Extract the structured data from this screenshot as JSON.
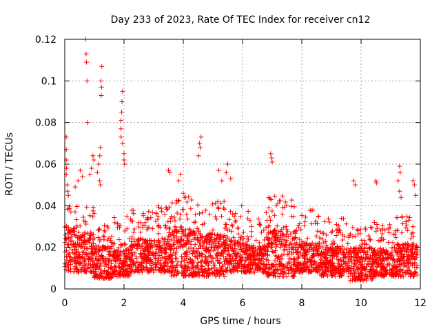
{
  "chart_data": {
    "type": "scatter",
    "title": "Day 233 of 2023, Rate Of TEC Index for receiver cn12",
    "xlabel": "GPS time / hours",
    "ylabel": "ROTI / TECUs",
    "xlim": [
      0,
      12
    ],
    "ylim": [
      0,
      0.12
    ],
    "xticks": [
      0,
      2,
      4,
      6,
      8,
      10,
      12
    ],
    "yticks": [
      0,
      0.02,
      0.04,
      0.06,
      0.08,
      0.1,
      0.12
    ],
    "xtick_labels": [
      "0",
      "2",
      "4",
      "6",
      "8",
      "10",
      "12"
    ],
    "ytick_labels": [
      "0",
      "0.02",
      "0.04",
      "0.06",
      "0.08",
      "0.1",
      "0.12"
    ],
    "grid": true,
    "marker": "+",
    "color": "#ff0000",
    "series": [
      {
        "name": "cn12",
        "points": [
          [
            0.7,
            0.12
          ],
          [
            0.72,
            0.113
          ],
          [
            0.73,
            0.109
          ],
          [
            0.75,
            0.1
          ],
          [
            0.76,
            0.08
          ],
          [
            1.25,
            0.107
          ],
          [
            1.22,
            0.1
          ],
          [
            1.24,
            0.097
          ],
          [
            1.23,
            0.093
          ],
          [
            1.95,
            0.095
          ],
          [
            1.93,
            0.09
          ],
          [
            1.92,
            0.085
          ],
          [
            1.9,
            0.081
          ],
          [
            1.9,
            0.077
          ],
          [
            1.9,
            0.073
          ],
          [
            1.95,
            0.07
          ],
          [
            2.0,
            0.065
          ],
          [
            2.0,
            0.062
          ],
          [
            2.02,
            0.06
          ],
          [
            0.05,
            0.073
          ],
          [
            0.05,
            0.067
          ],
          [
            0.05,
            0.062
          ],
          [
            0.06,
            0.058
          ],
          [
            0.05,
            0.055
          ],
          [
            0.08,
            0.05
          ],
          [
            0.1,
            0.047
          ],
          [
            0.12,
            0.045
          ],
          [
            1.2,
            0.068
          ],
          [
            1.18,
            0.064
          ],
          [
            1.15,
            0.06
          ],
          [
            1.1,
            0.056
          ],
          [
            1.18,
            0.052
          ],
          [
            1.2,
            0.05
          ],
          [
            0.95,
            0.064
          ],
          [
            0.98,
            0.062
          ],
          [
            0.9,
            0.058
          ],
          [
            0.85,
            0.055
          ],
          [
            0.52,
            0.057
          ],
          [
            0.6,
            0.054
          ],
          [
            0.35,
            0.049
          ],
          [
            0.45,
            0.052
          ],
          [
            3.5,
            0.057
          ],
          [
            3.55,
            0.056
          ],
          [
            3.9,
            0.055
          ],
          [
            3.85,
            0.052
          ],
          [
            4.0,
            0.046
          ],
          [
            4.05,
            0.044
          ],
          [
            4.6,
            0.073
          ],
          [
            4.55,
            0.07
          ],
          [
            4.57,
            0.068
          ],
          [
            4.52,
            0.064
          ],
          [
            5.2,
            0.057
          ],
          [
            5.5,
            0.06
          ],
          [
            5.45,
            0.056
          ],
          [
            5.6,
            0.053
          ],
          [
            5.3,
            0.052
          ],
          [
            6.95,
            0.065
          ],
          [
            6.98,
            0.063
          ],
          [
            7.0,
            0.061
          ],
          [
            9.75,
            0.052
          ],
          [
            9.8,
            0.05
          ],
          [
            10.5,
            0.052
          ],
          [
            10.52,
            0.051
          ],
          [
            11.3,
            0.059
          ],
          [
            11.32,
            0.056
          ],
          [
            11.25,
            0.052
          ],
          [
            11.3,
            0.047
          ],
          [
            11.35,
            0.044
          ],
          [
            11.75,
            0.052
          ],
          [
            11.8,
            0.05
          ],
          [
            11.85,
            0.045
          ]
        ],
        "bands": [
          [
            0.0,
            0.5,
            0.008,
            0.022,
            0.045
          ],
          [
            0.5,
            1.0,
            0.008,
            0.02,
            0.04
          ],
          [
            1.0,
            1.6,
            0.005,
            0.015,
            0.032
          ],
          [
            1.6,
            2.2,
            0.006,
            0.014,
            0.035
          ],
          [
            2.2,
            3.0,
            0.008,
            0.018,
            0.038
          ],
          [
            3.0,
            3.6,
            0.008,
            0.018,
            0.04
          ],
          [
            3.6,
            4.6,
            0.006,
            0.02,
            0.045
          ],
          [
            4.6,
            5.4,
            0.006,
            0.019,
            0.043
          ],
          [
            5.4,
            6.2,
            0.008,
            0.018,
            0.04
          ],
          [
            6.2,
            6.8,
            0.008,
            0.016,
            0.035
          ],
          [
            6.8,
            7.8,
            0.006,
            0.02,
            0.045
          ],
          [
            7.8,
            8.6,
            0.008,
            0.017,
            0.038
          ],
          [
            8.6,
            9.6,
            0.006,
            0.015,
            0.034
          ],
          [
            9.6,
            10.4,
            0.004,
            0.014,
            0.03
          ],
          [
            10.4,
            11.2,
            0.006,
            0.014,
            0.032
          ],
          [
            11.2,
            11.9,
            0.006,
            0.016,
            0.035
          ]
        ]
      }
    ]
  }
}
